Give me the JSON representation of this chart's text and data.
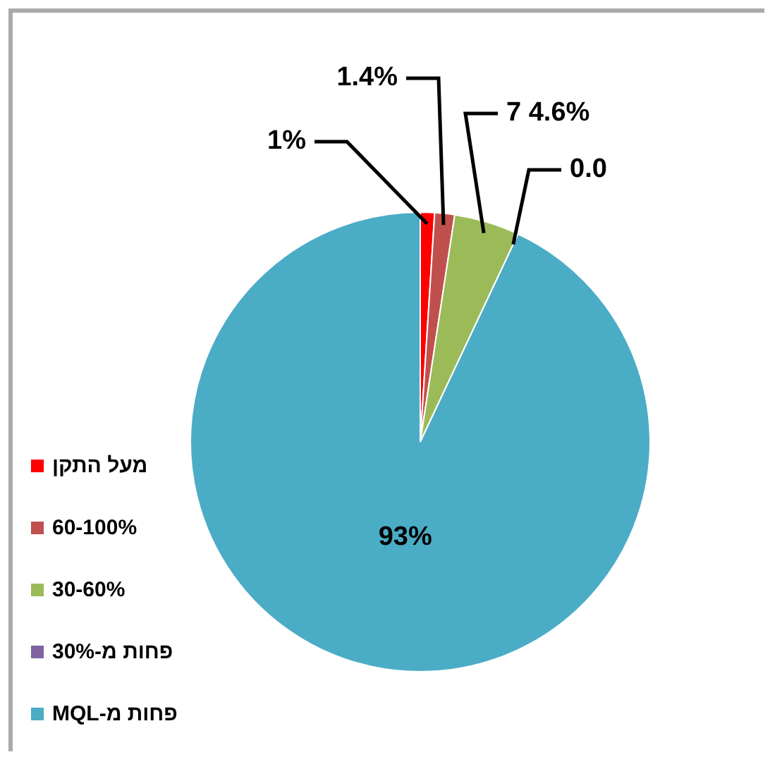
{
  "chart_data": {
    "type": "pie",
    "categories": [
      "מעל התקן",
      "60-100%",
      "30-60%",
      "פחות מ-30%",
      "פחות מ-MQL"
    ],
    "values": [
      1,
      1.4,
      4.6,
      0.0,
      93
    ],
    "colors": [
      "#ff0000",
      "#c0504d",
      "#9bbb59",
      "#8064a2",
      "#4bacc6"
    ],
    "value_labels": [
      "1%",
      "1.4%",
      "7 4.6%",
      "0.0",
      "93%"
    ],
    "legend": "left"
  }
}
